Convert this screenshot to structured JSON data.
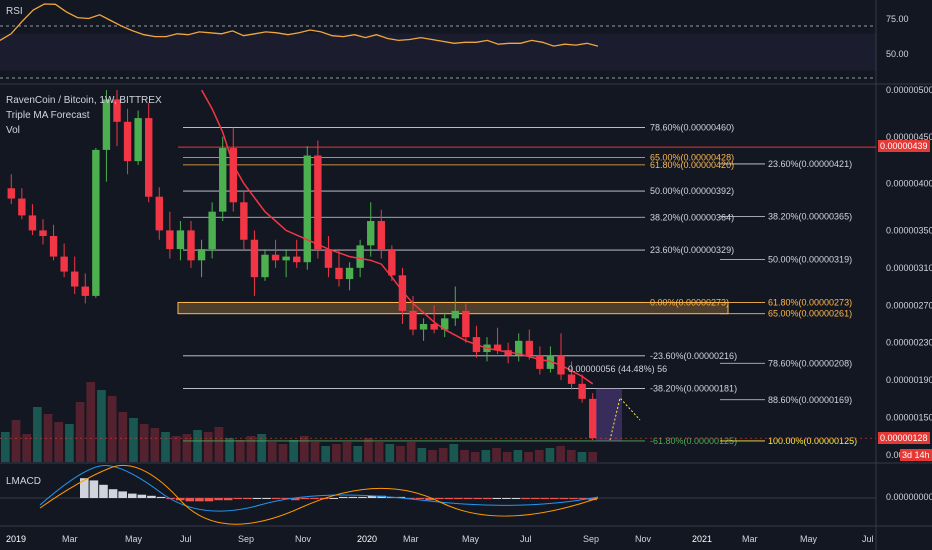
{
  "colors": {
    "background": "#131722",
    "up": "#4caf50",
    "down": "#f23645",
    "ma": "#f23645",
    "rsi": "#f0a63c",
    "fib_line": "#d1d4dc",
    "fib_green": "#4caf50",
    "zone": "#ffb74d",
    "price_line": "#e53935"
  },
  "rsi_pane": {
    "label": "RSI",
    "ticks": [
      "75.00",
      "50.00"
    ]
  },
  "price_pane": {
    "title": "RavenCoin / Bitcoin, 1W, BITTREX",
    "indicators": [
      "Triple MA Forecast",
      "Vol"
    ],
    "measure_label": "0.00000056 (44.48%) 56",
    "current_price": "0.00000128",
    "secondary_price": "0.00000439",
    "countdown": "3d 14h",
    "axis_ticks": [
      "0.00000500",
      "0.00000450",
      "0.00000400",
      "0.00000350",
      "0.00000310",
      "0.00000270",
      "0.00000230",
      "0.00000190",
      "0.00000150",
      "0.00000110"
    ]
  },
  "lmacd_pane": {
    "label": "LMACD",
    "tick": "0.00000000"
  },
  "time_axis": [
    "2019",
    "Mar",
    "May",
    "Jul",
    "Sep",
    "Nov",
    "2020",
    "Mar",
    "May",
    "Jul",
    "Sep",
    "Nov",
    "2021",
    "Mar",
    "May",
    "Jul"
  ],
  "chart_data": [
    {
      "type": "line",
      "name": "RSI",
      "y_ticks": [
        75,
        50
      ],
      "values": [
        48,
        55,
        68,
        80,
        92,
        86,
        78,
        72,
        71,
        75,
        69,
        63,
        58,
        54,
        52,
        52,
        55,
        54,
        57,
        56,
        55,
        58,
        53,
        55,
        57,
        56,
        54,
        56,
        59,
        57,
        53,
        52,
        54,
        51,
        54,
        50,
        48,
        49,
        51,
        49,
        47,
        45,
        46,
        46,
        48,
        44,
        45,
        45,
        48,
        46,
        42,
        44,
        43,
        45,
        42
      ]
    },
    {
      "type": "candlestick",
      "series": [
        {
          "name": "RavenCoin / Bitcoin",
          "x_labels": [
            "2019",
            "Mar",
            "May",
            "Jul",
            "Sep",
            "Nov",
            "2020",
            "Mar",
            "May",
            "Jul",
            "Sep",
            "Nov",
            "2021",
            "Mar",
            "May",
            "Jul"
          ]
        }
      ],
      "candles": [
        [
          3.95e-06,
          4.1e-06,
          3.78e-06,
          3.84e-06
        ],
        [
          3.84e-06,
          3.95e-06,
          3.62e-06,
          3.66e-06
        ],
        [
          3.66e-06,
          3.78e-06,
          3.45e-06,
          3.5e-06
        ],
        [
          3.5e-06,
          3.62e-06,
          3.35e-06,
          3.44e-06
        ],
        [
          3.44e-06,
          3.56e-06,
          3.18e-06,
          3.22e-06
        ],
        [
          3.22e-06,
          3.36e-06,
          3e-06,
          3.06e-06
        ],
        [
          3.06e-06,
          3.22e-06,
          2.82e-06,
          2.9e-06
        ],
        [
          2.9e-06,
          3.04e-06,
          2.72e-06,
          2.8e-06
        ],
        [
          2.8e-06,
          4.38e-06,
          2.78e-06,
          4.36e-06
        ],
        [
          4.36e-06,
          5e-06,
          4.02e-06,
          4.9e-06
        ],
        [
          4.9e-06,
          5e-06,
          4.4e-06,
          4.66e-06
        ],
        [
          4.66e-06,
          4.8e-06,
          4.1e-06,
          4.24e-06
        ],
        [
          4.24e-06,
          4.78e-06,
          4.2e-06,
          4.7e-06
        ],
        [
          4.7e-06,
          4.86e-06,
          3.8e-06,
          3.86e-06
        ],
        [
          3.86e-06,
          3.96e-06,
          3.4e-06,
          3.5e-06
        ],
        [
          3.5e-06,
          3.7e-06,
          3.2e-06,
          3.3e-06
        ],
        [
          3.3e-06,
          3.6e-06,
          3.18e-06,
          3.5e-06
        ],
        [
          3.5e-06,
          3.6e-06,
          3.1e-06,
          3.18e-06
        ],
        [
          3.18e-06,
          3.4e-06,
          3e-06,
          3.3e-06
        ],
        [
          3.3e-06,
          3.8e-06,
          3.2e-06,
          3.7e-06
        ],
        [
          3.7e-06,
          4.5e-06,
          3.6e-06,
          4.38e-06
        ],
        [
          4.38e-06,
          4.6e-06,
          3.7e-06,
          3.8e-06
        ],
        [
          3.8e-06,
          3.92e-06,
          3.3e-06,
          3.4e-06
        ],
        [
          3.4e-06,
          3.5e-06,
          2.8e-06,
          3e-06
        ],
        [
          3e-06,
          3.3e-06,
          2.96e-06,
          3.24e-06
        ],
        [
          3.24e-06,
          3.4e-06,
          3.1e-06,
          3.18e-06
        ],
        [
          3.18e-06,
          3.3e-06,
          3e-06,
          3.22e-06
        ],
        [
          3.22e-06,
          3.4e-06,
          3.1e-06,
          3.16e-06
        ],
        [
          3.16e-06,
          4.4e-06,
          3.08e-06,
          4.3e-06
        ],
        [
          4.3e-06,
          4.46e-06,
          3.2e-06,
          3.3e-06
        ],
        [
          3.3e-06,
          3.44e-06,
          3e-06,
          3.1e-06
        ],
        [
          3.1e-06,
          3.3e-06,
          2.9e-06,
          2.98e-06
        ],
        [
          2.98e-06,
          3.16e-06,
          2.86e-06,
          3.1e-06
        ],
        [
          3.1e-06,
          3.4e-06,
          3e-06,
          3.34e-06
        ],
        [
          3.34e-06,
          3.8e-06,
          3.22e-06,
          3.6e-06
        ],
        [
          3.6e-06,
          3.72e-06,
          3.2e-06,
          3.3e-06
        ],
        [
          3.3e-06,
          3.34e-06,
          2.96e-06,
          3.02e-06
        ],
        [
          3.02e-06,
          3.1e-06,
          2.5e-06,
          2.64e-06
        ],
        [
          2.64e-06,
          2.8e-06,
          2.38e-06,
          2.44e-06
        ],
        [
          2.44e-06,
          2.56e-06,
          2.32e-06,
          2.5e-06
        ],
        [
          2.5e-06,
          2.7e-06,
          2.4e-06,
          2.44e-06
        ],
        [
          2.44e-06,
          2.62e-06,
          2.36e-06,
          2.56e-06
        ],
        [
          2.56e-06,
          2.9e-06,
          2.48e-06,
          2.64e-06
        ],
        [
          2.64e-06,
          2.72e-06,
          2.3e-06,
          2.36e-06
        ],
        [
          2.36e-06,
          2.48e-06,
          2.14e-06,
          2.2e-06
        ],
        [
          2.2e-06,
          2.36e-06,
          2.1e-06,
          2.28e-06
        ],
        [
          2.28e-06,
          2.46e-06,
          2.18e-06,
          2.22e-06
        ],
        [
          2.22e-06,
          2.3e-06,
          2.08e-06,
          2.16e-06
        ],
        [
          2.16e-06,
          2.4e-06,
          2.1e-06,
          2.32e-06
        ],
        [
          2.32e-06,
          2.44e-06,
          2.12e-06,
          2.16e-06
        ],
        [
          2.16e-06,
          2.26e-06,
          1.96e-06,
          2.02e-06
        ],
        [
          2.02e-06,
          2.26e-06,
          1.98e-06,
          2.16e-06
        ],
        [
          2.16e-06,
          2.4e-06,
          1.9e-06,
          1.96e-06
        ],
        [
          1.96e-06,
          2.1e-06,
          1.8e-06,
          1.86e-06
        ],
        [
          1.86e-06,
          1.96e-06,
          1.66e-06,
          1.7e-06
        ],
        [
          1.7e-06,
          1.76e-06,
          1.26e-06,
          1.28e-06
        ]
      ],
      "ma": [
        5e-06,
        4.8e-06,
        4.55e-06,
        4.2e-06,
        4e-06,
        3.85e-06,
        3.7e-06,
        3.6e-06,
        3.5e-06,
        3.45e-06,
        3.4e-06,
        3.35e-06,
        3.3e-06,
        3.26e-06,
        3.22e-06,
        3.2e-06,
        3.18e-06,
        3.14e-06,
        3e-06,
        2.85e-06,
        2.72e-06,
        2.62e-06,
        2.52e-06,
        2.44e-06,
        2.38e-06,
        2.32e-06,
        2.28e-06,
        2.24e-06,
        2.22e-06,
        2.2e-06,
        2.18e-06,
        2.15e-06,
        2.12e-06,
        2.1e-06,
        2.06e-06,
        2e-06,
        1.94e-06,
        1.86e-06
      ],
      "volume": [
        30,
        42,
        28,
        55,
        48,
        40,
        38,
        60,
        80,
        72,
        66,
        50,
        44,
        38,
        34,
        30,
        26,
        28,
        32,
        30,
        35,
        24,
        22,
        26,
        28,
        20,
        18,
        22,
        26,
        20,
        16,
        18,
        20,
        16,
        24,
        20,
        18,
        16,
        20,
        14,
        12,
        14,
        18,
        12,
        10,
        12,
        14,
        10,
        12,
        10,
        12,
        14,
        16,
        12,
        10,
        10
      ],
      "fib_levels_left": [
        {
          "label": "78.60%(0.00000460)",
          "value": 4.6e-06
        },
        {
          "label": "65.00%(0.00000428)",
          "value": 4.28e-06
        },
        {
          "label": "61.80%(0.00000420)",
          "value": 4.2e-06
        },
        {
          "label": "50.00%(0.00000392)",
          "value": 3.92e-06
        },
        {
          "label": "38.20%(0.00000364)",
          "value": 3.64e-06
        },
        {
          "label": "23.60%(0.00000329)",
          "value": 3.29e-06
        },
        {
          "label": "0.00%(0.00000273)",
          "value": 2.73e-06
        },
        {
          "label": "-23.60%(0.00000216)",
          "value": 2.16e-06
        },
        {
          "label": "-38.20%(0.00000181)",
          "value": 1.81e-06
        },
        {
          "label": "-61.80%(0.00000125)",
          "value": 1.25e-06
        }
      ],
      "fib_levels_right": [
        {
          "label": "23.60%(0.00000421)",
          "value": 4.21e-06
        },
        {
          "label": "38.20%(0.00000365)",
          "value": 3.65e-06
        },
        {
          "label": "50.00%(0.00000319)",
          "value": 3.19e-06
        },
        {
          "label": "61.80%(0.00000273)",
          "value": 2.73e-06
        },
        {
          "label": "65.00%(0.00000261)",
          "value": 2.61e-06
        },
        {
          "label": "78.60%(0.00000208)",
          "value": 2.08e-06
        },
        {
          "label": "88.60%(0.00000169)",
          "value": 1.69e-06
        },
        {
          "label": "100.00%(0.00000125)",
          "value": 1.25e-06
        }
      ]
    },
    {
      "type": "bar",
      "name": "LMACD",
      "values": [
        18,
        16,
        12,
        8,
        6,
        4,
        3,
        2,
        1,
        -1,
        -2,
        -3,
        -3,
        -3,
        -2,
        -2,
        -1,
        -1,
        0,
        0,
        -1,
        -1,
        -2,
        -1,
        -1,
        -1,
        0,
        1,
        1,
        1,
        2,
        2,
        1,
        1,
        -1,
        -1,
        -2,
        -1,
        -1,
        -1,
        -1,
        -1,
        -1,
        0,
        0,
        0,
        -1,
        -1,
        -1,
        -1,
        -1,
        -1,
        -1,
        -2
      ]
    }
  ]
}
